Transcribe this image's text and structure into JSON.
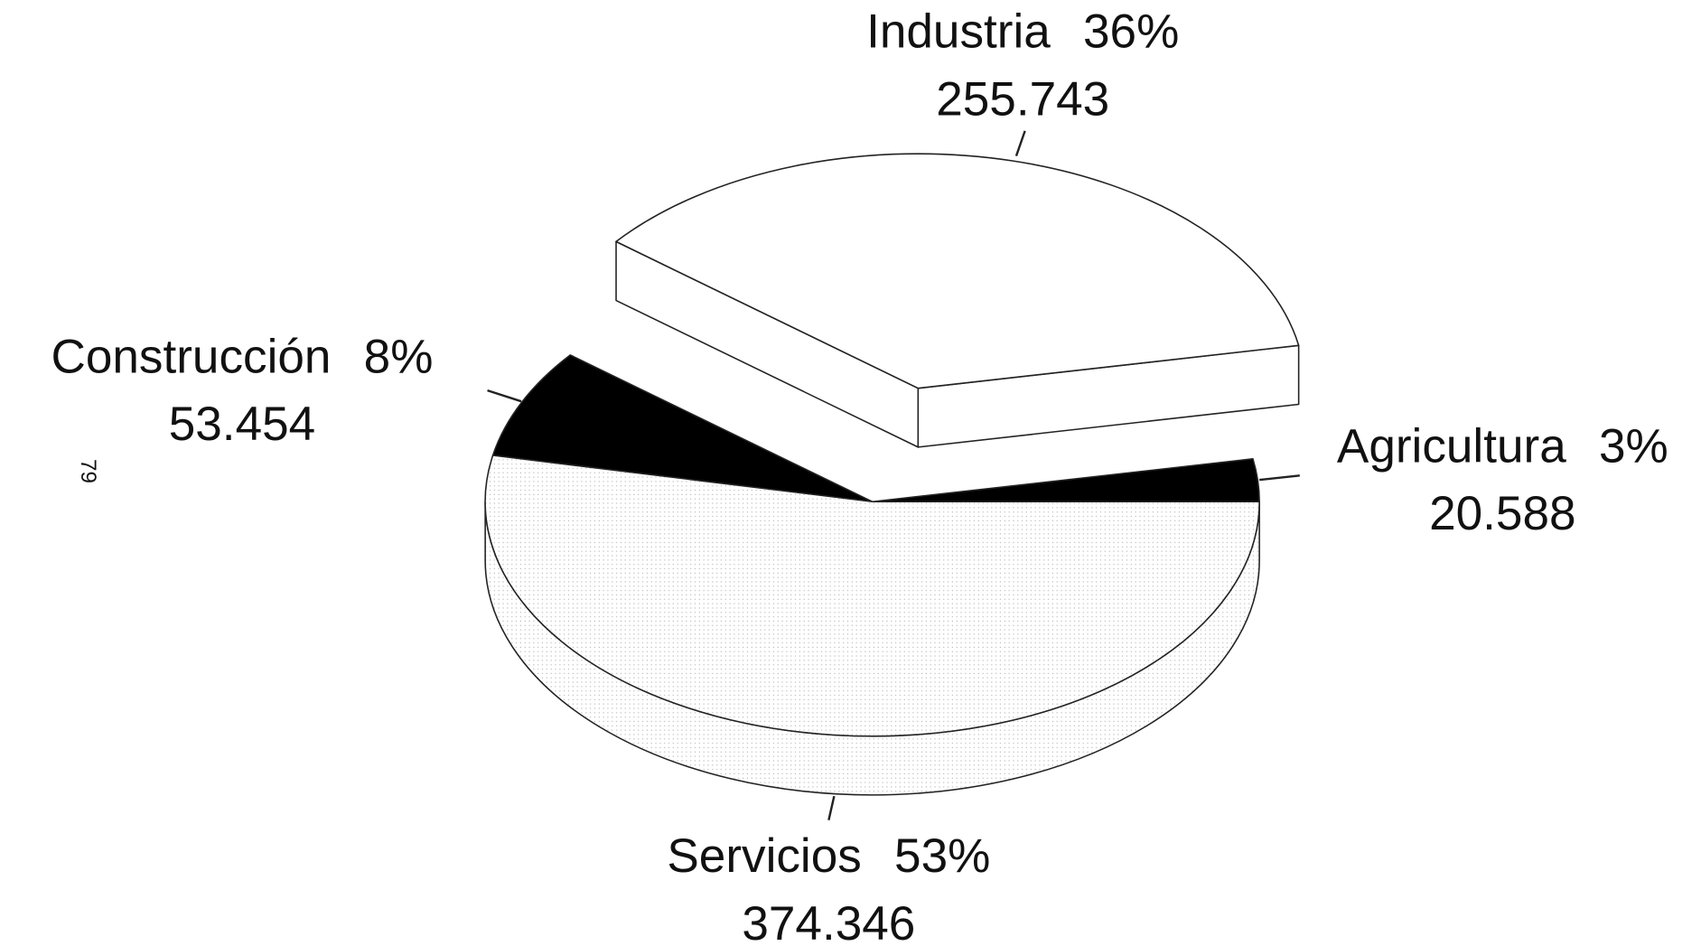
{
  "chart_data": {
    "type": "pie3d",
    "categories": [
      "Agricultura",
      "Industria",
      "Construcción",
      "Servicios"
    ],
    "values": [
      20588,
      255743,
      53454,
      374346
    ],
    "value_labels": [
      "20.588",
      "255.743",
      "53.454",
      "374.346"
    ],
    "percent_labels": [
      "3%",
      "36%",
      "8%",
      "53%"
    ],
    "colors": [
      "#000000",
      "#ffffff",
      "#000000",
      "#f4f4f4"
    ],
    "explode": [
      false,
      true,
      false,
      false
    ]
  },
  "page_number": "79"
}
